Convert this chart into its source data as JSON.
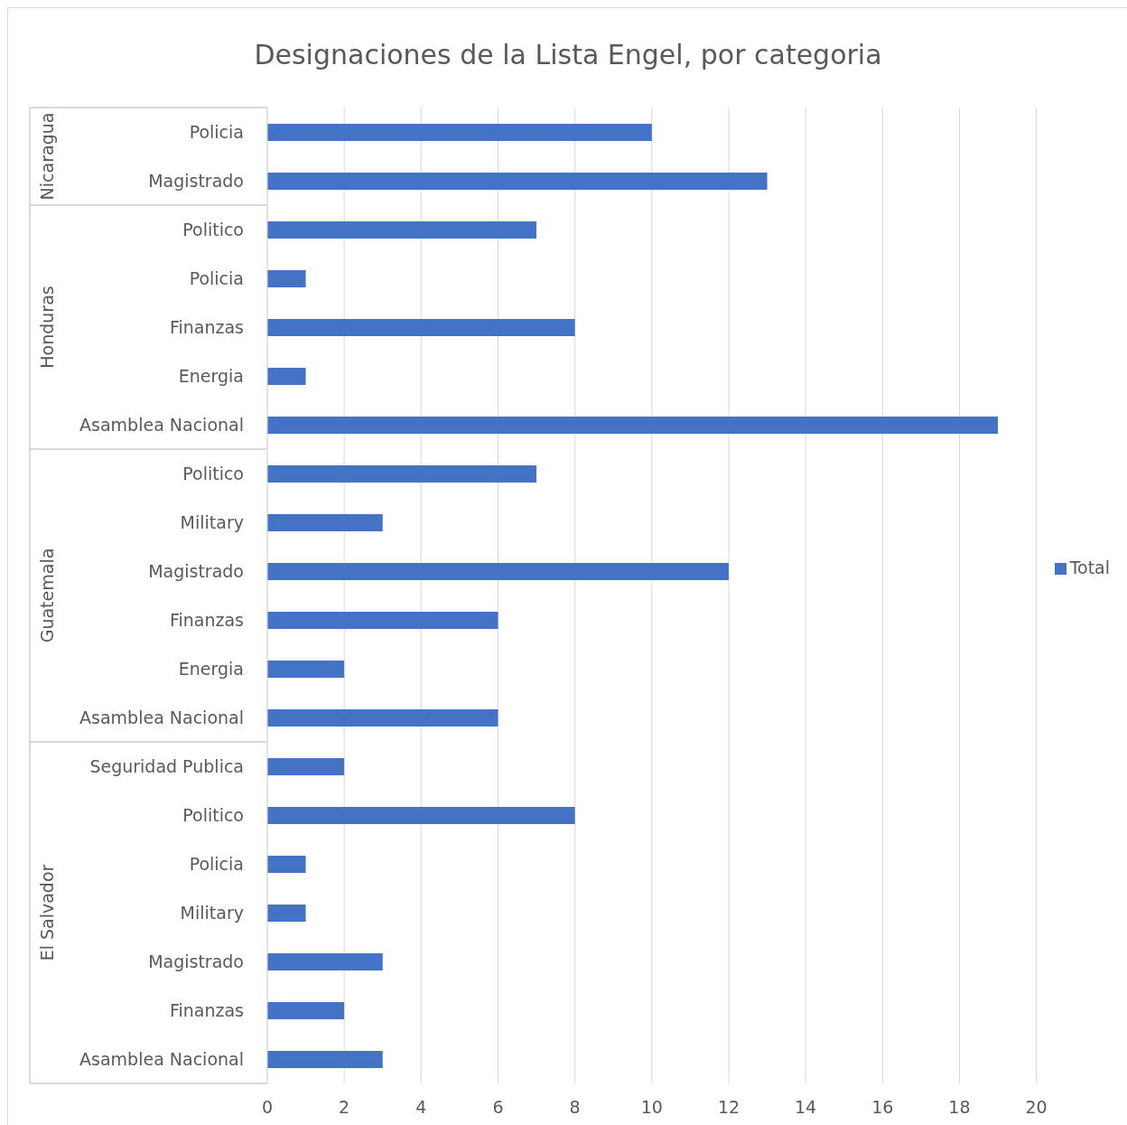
{
  "chart_data": {
    "type": "bar",
    "orientation": "horizontal",
    "title": "Designaciones de la Lista Engel, por categoria",
    "categories": [
      "Policia",
      "Magistrado",
      "Politico",
      "Policia",
      "Finanzas",
      "Energia",
      "Asamblea Nacional",
      "Politico",
      "Military",
      "Magistrado",
      "Finanzas",
      "Energia",
      "Asamblea Nacional",
      "Seguridad Publica",
      "Politico",
      "Policia",
      "Military",
      "Magistrado",
      "Finanzas",
      "Asamblea Nacional"
    ],
    "series": [
      {
        "name": "Total",
        "color": "#4472c4",
        "values": [
          10,
          13,
          7,
          1,
          8,
          1,
          19,
          7,
          3,
          12,
          6,
          2,
          6,
          2,
          8,
          1,
          1,
          3,
          2,
          3
        ]
      }
    ],
    "annotations": [
      "Nicaragua",
      "Honduras",
      "Guatemala",
      "El Salvador"
    ],
    "xlim": [
      0,
      20
    ],
    "xticks": [
      0,
      2,
      4,
      6,
      8,
      10,
      12,
      14,
      16,
      18,
      20
    ],
    "grid": "x",
    "legend": "right"
  }
}
